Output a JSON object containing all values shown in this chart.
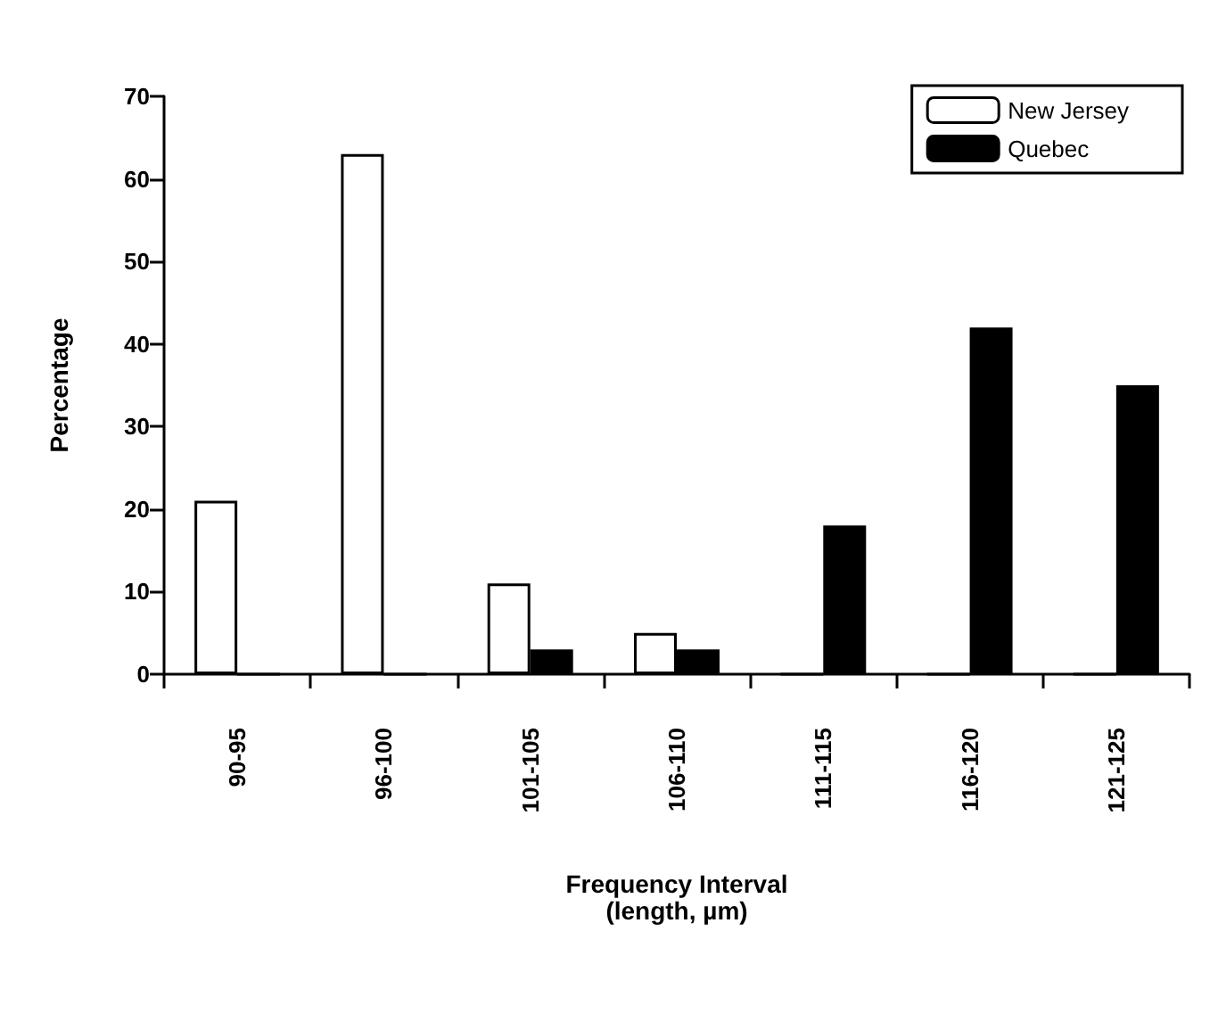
{
  "chart_data": {
    "type": "bar",
    "xlabel": "Frequency Interval\n(length, µm)",
    "ylabel": "Percentage",
    "categories": [
      "90-95",
      "96-100",
      "101-105",
      "106-110",
      "111-115",
      "116-120",
      "121-125"
    ],
    "series": [
      {
        "name": "New Jersey",
        "color": "#ffffff",
        "values": [
          21,
          63,
          11,
          5,
          0,
          0,
          0
        ]
      },
      {
        "name": "Quebec",
        "color": "#000000",
        "values": [
          0,
          0,
          3,
          3,
          18,
          42,
          35
        ]
      }
    ],
    "ylim": [
      0,
      70
    ],
    "yticks": [
      0,
      10,
      20,
      30,
      40,
      50,
      60,
      70
    ],
    "grid": false,
    "legend": "top right"
  }
}
